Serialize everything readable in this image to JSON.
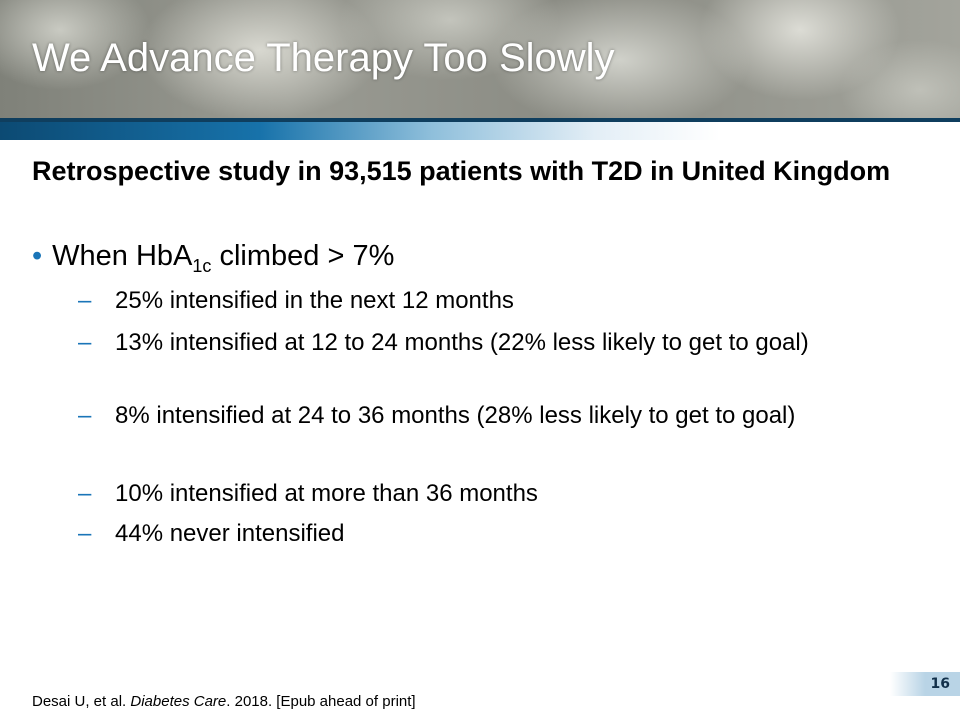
{
  "title": "We Advance Therapy Too Slowly",
  "heading": "Retrospective study in 93,515 patients with T2D in United Kingdom",
  "bullet": {
    "prefix": "When HbA",
    "subscript": "1c",
    "suffix": " climbed > 7%"
  },
  "subbullets": [
    "25% intensified in the next 12 months",
    "13% intensified at 12 to 24 months (22% less likely to get to goal)",
    "8% intensified at 24 to 36 months (28% less likely to get to goal)",
    "10% intensified  at more than 36 months",
    "44% never intensified"
  ],
  "footer": {
    "authors": "Desai U, et al. ",
    "journal": "Diabetes Care",
    "rest": ". 2018. [Epub ahead of print]"
  },
  "page_number": "16",
  "colors": {
    "accent": "#1a75b8",
    "header_bar": "#0f3e5e"
  }
}
